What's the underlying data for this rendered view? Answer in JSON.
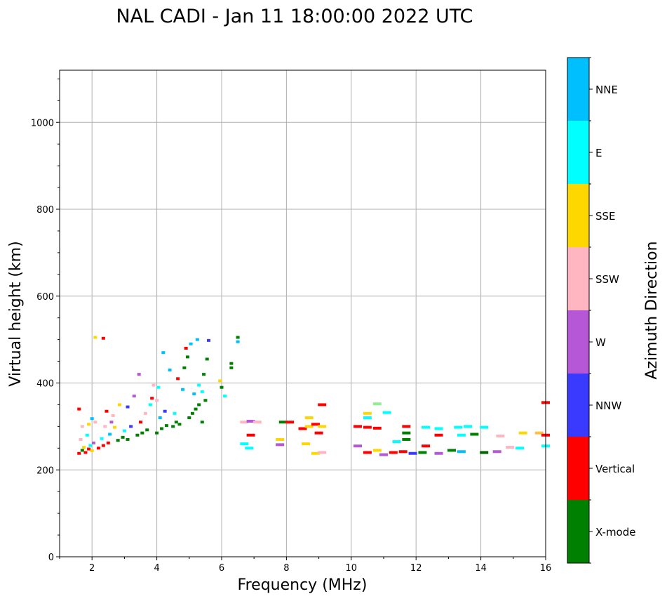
{
  "chart_data": {
    "type": "scatter",
    "title": "NAL CADI - Jan 11 18:00:00 2022 UTC",
    "xlabel": "Frequency (MHz)",
    "ylabel": "Virtual height (km)",
    "xlim": [
      1,
      16
    ],
    "ylim": [
      0,
      1120
    ],
    "xticks": [
      2,
      4,
      6,
      8,
      10,
      12,
      14,
      16
    ],
    "yticks": [
      0,
      200,
      400,
      600,
      800,
      1000
    ],
    "grid": true,
    "colorbar": {
      "label": "Azimuth Direction",
      "categories": [
        {
          "name": "X-mode",
          "color": "#008000"
        },
        {
          "name": "Vertical",
          "color": "#ff0000"
        },
        {
          "name": "NNW",
          "color": "#3a3aff"
        },
        {
          "name": "W",
          "color": "#b557d6"
        },
        {
          "name": "SSW",
          "color": "#ffb6c1"
        },
        {
          "name": "SSE",
          "color": "#ffd700"
        },
        {
          "name": "E",
          "color": "#00ffff"
        },
        {
          "name": "NNE",
          "color": "#00bfff"
        }
      ]
    },
    "extra_colors": {
      "light_green": "#90ee90",
      "orange": "#ffbf40",
      "dark_green": "#006400"
    },
    "points": [
      {
        "f": 1.6,
        "h": 238,
        "d": "Vertical"
      },
      {
        "f": 1.7,
        "h": 245,
        "d": "X-mode"
      },
      {
        "f": 1.75,
        "h": 252,
        "d": "SSE"
      },
      {
        "f": 1.8,
        "h": 240,
        "d": "Vertical"
      },
      {
        "f": 1.9,
        "h": 248,
        "d": "Vertical"
      },
      {
        "f": 1.95,
        "h": 256,
        "d": "E"
      },
      {
        "f": 2.0,
        "h": 244,
        "d": "SSE"
      },
      {
        "f": 2.05,
        "h": 262,
        "d": "W"
      },
      {
        "f": 1.65,
        "h": 270,
        "d": "SSW"
      },
      {
        "f": 1.85,
        "h": 280,
        "d": "E"
      },
      {
        "f": 1.7,
        "h": 300,
        "d": "SSW"
      },
      {
        "f": 1.9,
        "h": 305,
        "d": "SSE"
      },
      {
        "f": 2.1,
        "h": 310,
        "d": "SSW"
      },
      {
        "f": 1.6,
        "h": 340,
        "d": "Vertical"
      },
      {
        "f": 2.0,
        "h": 318,
        "d": "NNE"
      },
      {
        "f": 2.2,
        "h": 250,
        "d": "Vertical"
      },
      {
        "f": 2.35,
        "h": 256,
        "d": "Vertical"
      },
      {
        "f": 2.5,
        "h": 262,
        "d": "Vertical"
      },
      {
        "f": 2.3,
        "h": 272,
        "d": "E"
      },
      {
        "f": 2.55,
        "h": 282,
        "d": "NNE"
      },
      {
        "f": 2.4,
        "h": 300,
        "d": "SSW"
      },
      {
        "f": 2.6,
        "h": 310,
        "d": "W"
      },
      {
        "f": 2.7,
        "h": 298,
        "d": "SSE"
      },
      {
        "f": 2.45,
        "h": 335,
        "d": "Vertical"
      },
      {
        "f": 2.65,
        "h": 325,
        "d": "SSW"
      },
      {
        "f": 2.8,
        "h": 268,
        "d": "X-mode"
      },
      {
        "f": 2.95,
        "h": 275,
        "d": "X-mode"
      },
      {
        "f": 3.1,
        "h": 270,
        "d": "X-mode"
      },
      {
        "f": 3.0,
        "h": 290,
        "d": "E"
      },
      {
        "f": 3.2,
        "h": 300,
        "d": "NNW"
      },
      {
        "f": 3.1,
        "h": 345,
        "d": "NNW"
      },
      {
        "f": 3.3,
        "h": 370,
        "d": "W"
      },
      {
        "f": 2.85,
        "h": 350,
        "d": "SSE"
      },
      {
        "f": 3.4,
        "h": 280,
        "d": "X-mode"
      },
      {
        "f": 3.55,
        "h": 285,
        "d": "X-mode"
      },
      {
        "f": 3.7,
        "h": 292,
        "d": "X-mode"
      },
      {
        "f": 3.5,
        "h": 310,
        "d": "Vertical"
      },
      {
        "f": 3.65,
        "h": 330,
        "d": "SSW"
      },
      {
        "f": 3.8,
        "h": 350,
        "d": "E"
      },
      {
        "f": 3.45,
        "h": 420,
        "d": "W"
      },
      {
        "f": 3.9,
        "h": 395,
        "d": "SSW"
      },
      {
        "f": 3.85,
        "h": 365,
        "d": "Vertical"
      },
      {
        "f": 4.0,
        "h": 285,
        "d": "X-mode"
      },
      {
        "f": 4.15,
        "h": 295,
        "d": "X-mode"
      },
      {
        "f": 4.3,
        "h": 302,
        "d": "X-mode"
      },
      {
        "f": 4.1,
        "h": 320,
        "d": "NNE"
      },
      {
        "f": 4.25,
        "h": 335,
        "d": "NNW"
      },
      {
        "f": 4.05,
        "h": 390,
        "d": "E"
      },
      {
        "f": 4.2,
        "h": 470,
        "d": "NNE"
      },
      {
        "f": 4.4,
        "h": 430,
        "d": "NNE"
      },
      {
        "f": 4.0,
        "h": 360,
        "d": "SSW"
      },
      {
        "f": 4.5,
        "h": 300,
        "d": "X-mode"
      },
      {
        "f": 4.6,
        "h": 310,
        "d": "X-mode"
      },
      {
        "f": 4.7,
        "h": 305,
        "d": "X-mode"
      },
      {
        "f": 4.55,
        "h": 330,
        "d": "E"
      },
      {
        "f": 4.8,
        "h": 385,
        "d": "NNE"
      },
      {
        "f": 4.65,
        "h": 410,
        "d": "Vertical"
      },
      {
        "f": 4.9,
        "h": 480,
        "d": "Vertical"
      },
      {
        "f": 4.85,
        "h": 435,
        "d": "X-mode"
      },
      {
        "f": 4.95,
        "h": 460,
        "d": "X-mode"
      },
      {
        "f": 5.0,
        "h": 320,
        "d": "X-mode"
      },
      {
        "f": 5.1,
        "h": 330,
        "d": "X-mode"
      },
      {
        "f": 5.2,
        "h": 340,
        "d": "X-mode"
      },
      {
        "f": 5.3,
        "h": 350,
        "d": "X-mode"
      },
      {
        "f": 5.4,
        "h": 310,
        "d": "X-mode"
      },
      {
        "f": 5.15,
        "h": 375,
        "d": "NNE"
      },
      {
        "f": 5.3,
        "h": 395,
        "d": "E"
      },
      {
        "f": 5.05,
        "h": 490,
        "d": "NNE"
      },
      {
        "f": 5.25,
        "h": 500,
        "d": "NNE"
      },
      {
        "f": 5.5,
        "h": 360,
        "d": "X-mode"
      },
      {
        "f": 5.45,
        "h": 420,
        "d": "X-mode"
      },
      {
        "f": 5.55,
        "h": 455,
        "d": "X-mode"
      },
      {
        "f": 5.6,
        "h": 498,
        "d": "NNW"
      },
      {
        "f": 5.4,
        "h": 380,
        "d": "E"
      },
      {
        "f": 5.95,
        "h": 405,
        "d": "SSE"
      },
      {
        "f": 6.0,
        "h": 390,
        "d": "X-mode"
      },
      {
        "f": 6.1,
        "h": 370,
        "d": "E"
      },
      {
        "f": 6.3,
        "h": 445,
        "d": "X-mode"
      },
      {
        "f": 6.3,
        "h": 435,
        "d": "X-mode"
      },
      {
        "f": 6.5,
        "h": 505,
        "d": "X-mode"
      },
      {
        "f": 6.5,
        "h": 495,
        "d": "NNE"
      },
      {
        "f": 2.1,
        "h": 505,
        "d": "SSE"
      },
      {
        "f": 2.35,
        "h": 503,
        "d": "Vertical"
      },
      {
        "f": 6.7,
        "h": 310,
        "d": "SSW"
      },
      {
        "f": 6.9,
        "h": 312,
        "d": "W"
      },
      {
        "f": 7.1,
        "h": 310,
        "d": "SSW"
      },
      {
        "f": 6.9,
        "h": 280,
        "d": "Vertical"
      },
      {
        "f": 6.7,
        "h": 260,
        "d": "E"
      },
      {
        "f": 6.85,
        "h": 250,
        "d": "E"
      },
      {
        "f": 7.9,
        "h": 310,
        "d": "X-mode"
      },
      {
        "f": 8.1,
        "h": 310,
        "d": "Vertical"
      },
      {
        "f": 7.8,
        "h": 270,
        "d": "SSE"
      },
      {
        "f": 7.8,
        "h": 258,
        "d": "W"
      },
      {
        "f": 8.5,
        "h": 295,
        "d": "Vertical"
      },
      {
        "f": 8.7,
        "h": 300,
        "d": "SSE"
      },
      {
        "f": 8.9,
        "h": 305,
        "d": "Vertical"
      },
      {
        "f": 9.1,
        "h": 300,
        "d": "SSE"
      },
      {
        "f": 9.0,
        "h": 285,
        "d": "Vertical"
      },
      {
        "f": 9.1,
        "h": 350,
        "d": "Vertical"
      },
      {
        "f": 8.7,
        "h": 320,
        "d": "SSE"
      },
      {
        "f": 8.6,
        "h": 260,
        "d": "SSE"
      },
      {
        "f": 8.9,
        "h": 238,
        "d": "SSE"
      },
      {
        "f": 9.1,
        "h": 240,
        "d": "SSW"
      },
      {
        "f": 10.2,
        "h": 300,
        "d": "Vertical"
      },
      {
        "f": 10.5,
        "h": 298,
        "d": "Vertical"
      },
      {
        "f": 10.8,
        "h": 296,
        "d": "Vertical"
      },
      {
        "f": 10.5,
        "h": 330,
        "d": "SSE"
      },
      {
        "f": 10.5,
        "h": 320,
        "d": "E"
      },
      {
        "f": 10.8,
        "h": 352,
        "d": "light_green"
      },
      {
        "f": 11.1,
        "h": 332,
        "d": "E"
      },
      {
        "f": 10.2,
        "h": 255,
        "d": "W"
      },
      {
        "f": 10.5,
        "h": 240,
        "d": "Vertical"
      },
      {
        "f": 10.8,
        "h": 245,
        "d": "SSE"
      },
      {
        "f": 11.0,
        "h": 235,
        "d": "W"
      },
      {
        "f": 11.3,
        "h": 240,
        "d": "Vertical"
      },
      {
        "f": 11.6,
        "h": 242,
        "d": "Vertical"
      },
      {
        "f": 11.9,
        "h": 238,
        "d": "NNW"
      },
      {
        "f": 11.7,
        "h": 285,
        "d": "X-mode"
      },
      {
        "f": 11.7,
        "h": 300,
        "d": "Vertical"
      },
      {
        "f": 11.4,
        "h": 265,
        "d": "E"
      },
      {
        "f": 11.7,
        "h": 270,
        "d": "X-mode"
      },
      {
        "f": 12.2,
        "h": 240,
        "d": "X-mode"
      },
      {
        "f": 12.3,
        "h": 298,
        "d": "E"
      },
      {
        "f": 12.7,
        "h": 295,
        "d": "E"
      },
      {
        "f": 12.7,
        "h": 280,
        "d": "Vertical"
      },
      {
        "f": 12.3,
        "h": 255,
        "d": "Vertical"
      },
      {
        "f": 12.7,
        "h": 238,
        "d": "W"
      },
      {
        "f": 13.1,
        "h": 245,
        "d": "X-mode"
      },
      {
        "f": 13.4,
        "h": 242,
        "d": "NNE"
      },
      {
        "f": 13.3,
        "h": 298,
        "d": "E"
      },
      {
        "f": 13.6,
        "h": 300,
        "d": "E"
      },
      {
        "f": 13.4,
        "h": 280,
        "d": "E"
      },
      {
        "f": 13.8,
        "h": 282,
        "d": "X-mode"
      },
      {
        "f": 14.1,
        "h": 298,
        "d": "E"
      },
      {
        "f": 14.1,
        "h": 240,
        "d": "dark_green"
      },
      {
        "f": 14.5,
        "h": 242,
        "d": "W"
      },
      {
        "f": 14.6,
        "h": 278,
        "d": "SSW"
      },
      {
        "f": 14.9,
        "h": 252,
        "d": "SSW"
      },
      {
        "f": 15.2,
        "h": 250,
        "d": "E"
      },
      {
        "f": 15.3,
        "h": 285,
        "d": "SSE"
      },
      {
        "f": 15.8,
        "h": 285,
        "d": "orange"
      },
      {
        "f": 16.0,
        "h": 355,
        "d": "Vertical"
      },
      {
        "f": 16.0,
        "h": 280,
        "d": "Vertical"
      },
      {
        "f": 16.0,
        "h": 255,
        "d": "E"
      }
    ]
  }
}
